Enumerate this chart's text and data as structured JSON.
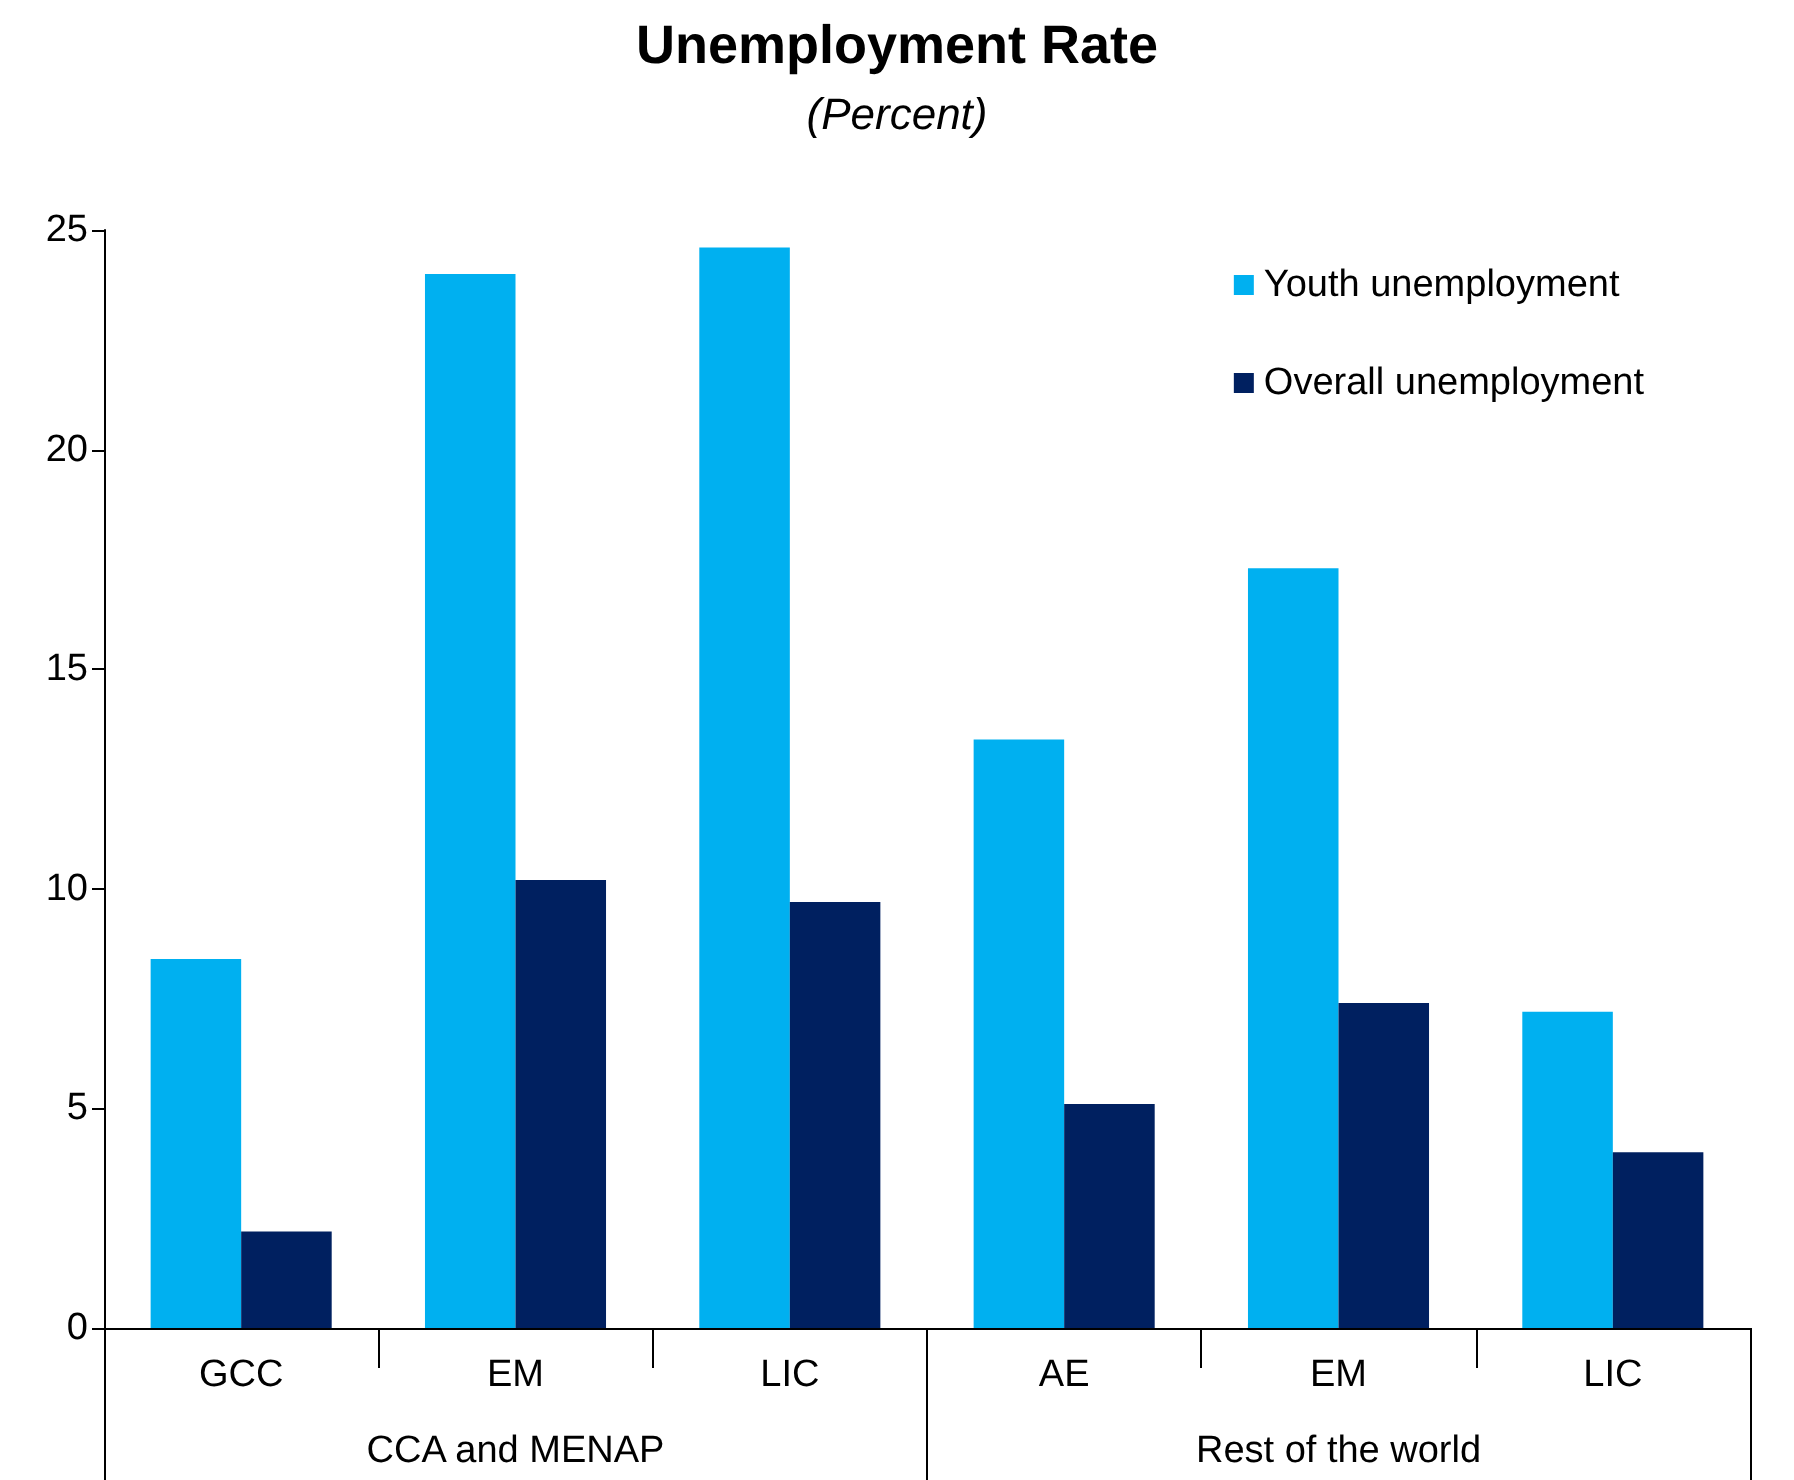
{
  "chart_data": {
    "type": "bar",
    "title": "Unemployment Rate",
    "subtitle": "(Percent)",
    "categories": [
      "GCC",
      "EM",
      "LIC",
      "AE",
      "EM",
      "LIC"
    ],
    "series": [
      {
        "name": "Youth unemployment",
        "color": "#00b0f0",
        "values": [
          8.4,
          24.0,
          24.6,
          13.4,
          17.3,
          7.2
        ]
      },
      {
        "name": "Overall unemployment",
        "color": "#002060",
        "values": [
          2.2,
          10.2,
          9.7,
          5.1,
          7.4,
          4.0
        ]
      }
    ],
    "annotations": [
      "CCA and MENAP",
      "Rest of the world"
    ],
    "ylim": [
      0,
      25
    ],
    "yticks": [
      0,
      5,
      10,
      15,
      20,
      25
    ],
    "grid": false,
    "legend": "top right"
  }
}
